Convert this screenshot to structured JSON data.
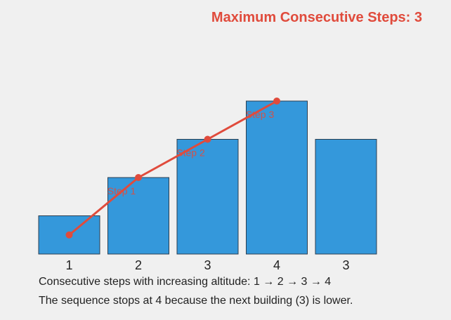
{
  "title": "Maximum Consecutive Steps: 3",
  "chart_data": {
    "type": "bar",
    "categories": [
      "1",
      "2",
      "3",
      "4",
      "3"
    ],
    "values": [
      1,
      2,
      3,
      4,
      3
    ],
    "path_indices": [
      0,
      1,
      2,
      3
    ],
    "step_labels": [
      "Step 1",
      "Step 2",
      "Step 3"
    ],
    "ylim": [
      0,
      4
    ],
    "bar_color": "#3498db",
    "bar_stroke": "#2c3e50",
    "path_color": "#e04b3c"
  },
  "captions": {
    "line1": "Consecutive steps with increasing altitude: 1 → 2 → 3 → 4",
    "line2": "The sequence stops at 4 because the next building (3) is lower."
  }
}
